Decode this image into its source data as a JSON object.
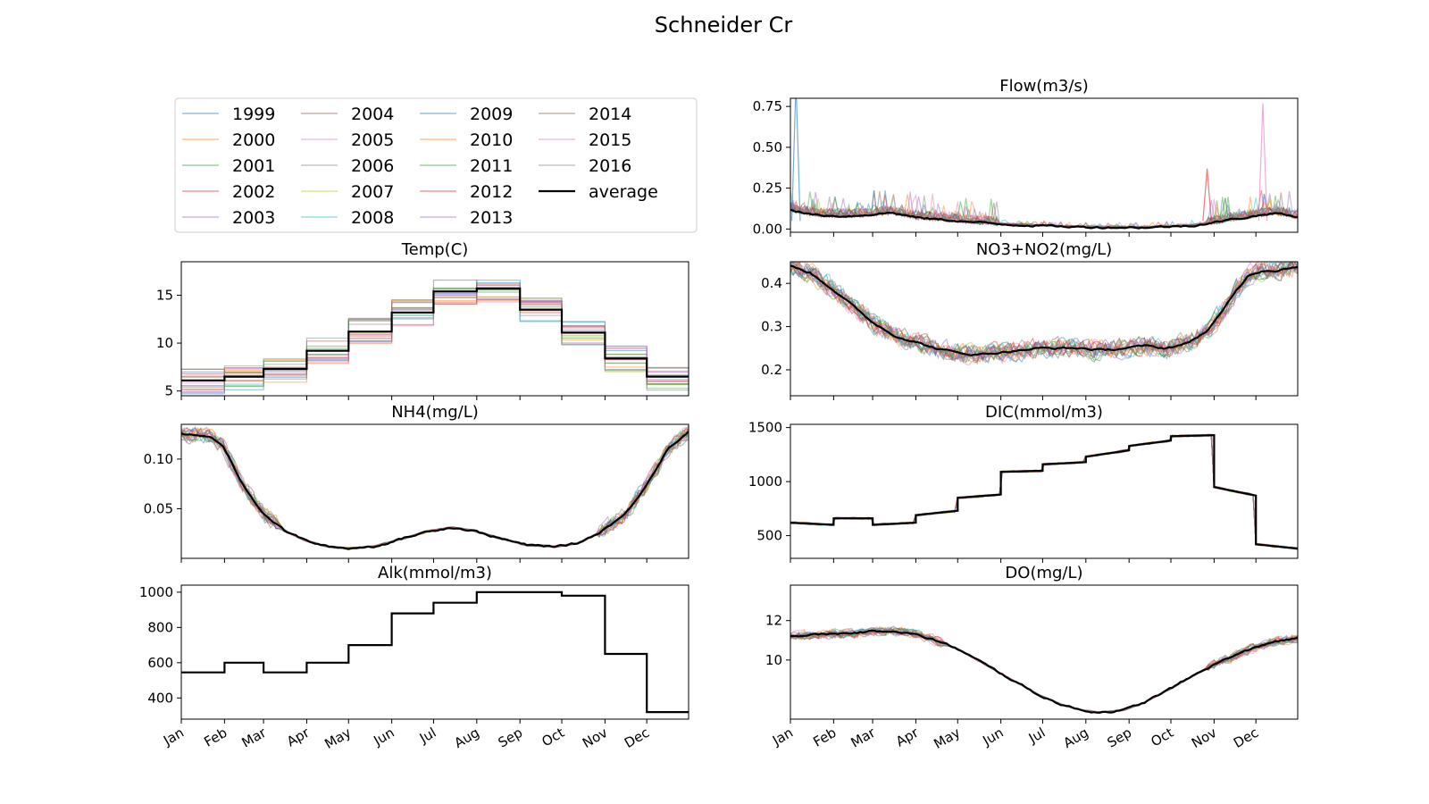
{
  "figure": {
    "title": "Schneider Cr"
  },
  "months": [
    "Jan",
    "Feb",
    "Mar",
    "Apr",
    "May",
    "Jun",
    "Jul",
    "Aug",
    "Sep",
    "Oct",
    "Nov",
    "Dec"
  ],
  "legend": {
    "years": [
      "1999",
      "2000",
      "2001",
      "2002",
      "2003",
      "2004",
      "2005",
      "2006",
      "2007",
      "2008",
      "2009",
      "2010",
      "2011",
      "2012",
      "2013",
      "2014",
      "2015",
      "2016"
    ],
    "average_label": "average",
    "placement": "upper-left panel area"
  },
  "colors": {
    "series": [
      "#1f77b4",
      "#ff7f0e",
      "#2ca02c",
      "#d62728",
      "#9467bd",
      "#8c564b",
      "#e377c2",
      "#7f7f7f",
      "#bcbd22",
      "#17becf"
    ],
    "average": "#000000"
  },
  "chart_data": [
    {
      "id": "flow",
      "type": "line",
      "title": "Flow(m3/s)",
      "ylim": [
        -0.02,
        0.8
      ],
      "yticks": [
        0.0,
        0.25,
        0.5,
        0.75
      ],
      "yticklabels": [
        "0.00",
        "0.25",
        "0.50",
        "0.75"
      ],
      "show_x_ticklabels": false,
      "average": {
        "x": [
          1,
          15,
          32,
          46,
          60,
          74,
          91,
          105,
          121,
          135,
          152,
          166,
          182,
          196,
          213,
          227,
          244,
          258,
          274,
          288,
          305,
          319,
          335,
          349,
          365
        ],
        "y": [
          0.12,
          0.09,
          0.08,
          0.08,
          0.09,
          0.1,
          0.07,
          0.06,
          0.05,
          0.04,
          0.03,
          0.025,
          0.02,
          0.015,
          0.012,
          0.01,
          0.01,
          0.01,
          0.015,
          0.02,
          0.04,
          0.06,
          0.08,
          0.1,
          0.07
        ]
      },
      "annual_noise": 0.08,
      "spikes": [
        [
          5,
          0.9
        ],
        [
          300,
          0.37
        ],
        [
          340,
          0.77
        ]
      ]
    },
    {
      "id": "temp",
      "type": "line",
      "title": "Temp(C)",
      "ylim": [
        4.5,
        18.5
      ],
      "yticks": [
        5,
        10,
        15
      ],
      "yticklabels": [
        "5",
        "10",
        "15"
      ],
      "show_x_ticklabels": false,
      "step": true,
      "average_monthly": [
        6.1,
        6.5,
        7.3,
        9.2,
        11.2,
        13.2,
        15.4,
        15.7,
        13.5,
        11.1,
        8.4,
        6.5
      ],
      "annual_spread": 1.4
    },
    {
      "id": "nh4",
      "type": "line",
      "title": "NH4(mg/L)",
      "ylim": [
        0.0,
        0.135
      ],
      "yticks": [
        0.05,
        0.1
      ],
      "yticklabels": [
        "0.05",
        "0.10"
      ],
      "show_x_ticklabels": false,
      "average": {
        "x": [
          1,
          20,
          30,
          45,
          60,
          75,
          90,
          105,
          120,
          140,
          160,
          180,
          195,
          210,
          230,
          250,
          270,
          285,
          300,
          320,
          335,
          350,
          365
        ],
        "y": [
          0.125,
          0.123,
          0.115,
          0.075,
          0.045,
          0.028,
          0.018,
          0.012,
          0.01,
          0.012,
          0.02,
          0.028,
          0.031,
          0.028,
          0.02,
          0.013,
          0.012,
          0.015,
          0.025,
          0.045,
          0.075,
          0.11,
          0.128
        ]
      },
      "annual_noise": 0.012
    },
    {
      "id": "alk",
      "type": "line",
      "title": "Alk(mmol/m3)",
      "ylim": [
        280,
        1040
      ],
      "yticks": [
        400,
        600,
        800,
        1000
      ],
      "yticklabels": [
        "400",
        "600",
        "800",
        "1000"
      ],
      "show_x_ticklabels": true,
      "step": true,
      "average_monthly": [
        545,
        600,
        545,
        600,
        700,
        880,
        940,
        1000,
        1000,
        980,
        650,
        320
      ]
    },
    {
      "id": "no3",
      "type": "line",
      "title": "NO3+NO2(mg/L)",
      "ylim": [
        0.14,
        0.45
      ],
      "yticks": [
        0.2,
        0.3,
        0.4
      ],
      "yticklabels": [
        "0.2",
        "0.3",
        "0.4"
      ],
      "show_x_ticklabels": false,
      "average": {
        "x": [
          1,
          15,
          30,
          45,
          60,
          75,
          90,
          105,
          120,
          135,
          150,
          165,
          180,
          195,
          210,
          225,
          240,
          255,
          270,
          285,
          300,
          310,
          320,
          330,
          340,
          350,
          365
        ],
        "y": [
          0.44,
          0.425,
          0.39,
          0.35,
          0.31,
          0.28,
          0.265,
          0.25,
          0.24,
          0.235,
          0.24,
          0.245,
          0.25,
          0.25,
          0.25,
          0.245,
          0.25,
          0.255,
          0.25,
          0.26,
          0.29,
          0.33,
          0.38,
          0.42,
          0.43,
          0.43,
          0.44
        ]
      },
      "annual_noise": 0.035
    },
    {
      "id": "dic",
      "type": "line",
      "title": "DIC(mmol/m3)",
      "ylim": [
        290,
        1530
      ],
      "yticks": [
        500,
        1000,
        1500
      ],
      "yticklabels": [
        "500",
        "1000",
        "1500"
      ],
      "show_x_ticklabels": false,
      "step": true,
      "average_monthly": [
        [
          620,
          600
        ],
        [
          660,
          660
        ],
        [
          600,
          620
        ],
        [
          690,
          730
        ],
        [
          850,
          880
        ],
        [
          1090,
          1100
        ],
        [
          1160,
          1180
        ],
        [
          1230,
          1290
        ],
        [
          1330,
          1380
        ],
        [
          1420,
          1430
        ],
        [
          950,
          870
        ],
        [
          420,
          380
        ]
      ],
      "annual_noise": 25
    },
    {
      "id": "do",
      "type": "line",
      "title": "DO(mg/L)",
      "ylim": [
        7.0,
        13.8
      ],
      "yticks": [
        10,
        12
      ],
      "yticklabels": [
        "10",
        "12"
      ],
      "show_x_ticklabels": true,
      "average": {
        "x": [
          1,
          20,
          40,
          60,
          75,
          90,
          105,
          120,
          135,
          150,
          165,
          180,
          195,
          210,
          222,
          240,
          255,
          270,
          285,
          300,
          315,
          330,
          345,
          365
        ],
        "y": [
          11.2,
          11.3,
          11.35,
          11.45,
          11.5,
          11.3,
          11.0,
          10.6,
          10.0,
          9.4,
          8.8,
          8.2,
          7.75,
          7.45,
          7.35,
          7.45,
          7.85,
          8.4,
          9.0,
          9.6,
          10.1,
          10.5,
          10.9,
          11.1
        ]
      },
      "annual_noise": 0.35
    }
  ]
}
